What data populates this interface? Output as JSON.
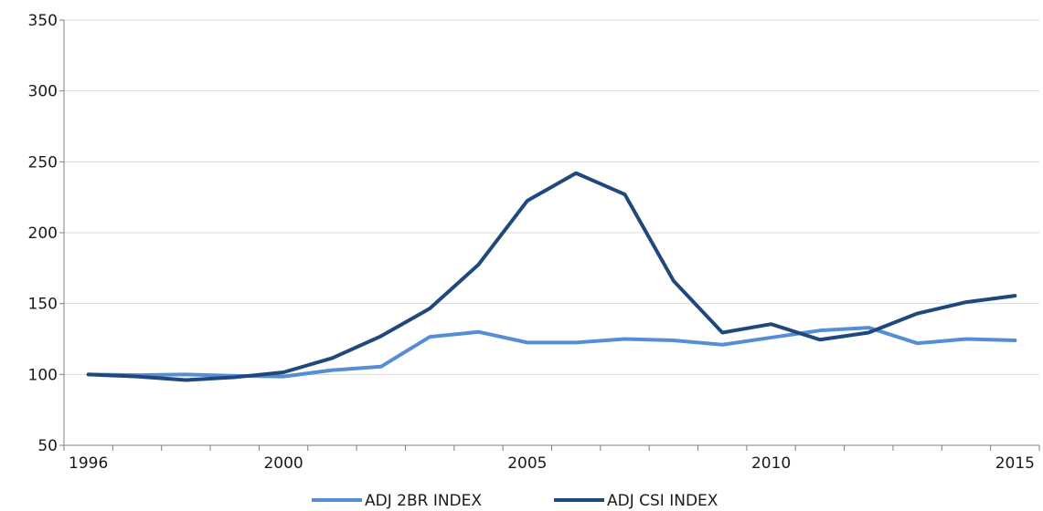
{
  "chart_data": {
    "type": "line",
    "title": "",
    "xlabel": "",
    "ylabel": "",
    "ylim": [
      50,
      350
    ],
    "yticks": [
      50,
      100,
      150,
      200,
      250,
      300,
      350
    ],
    "xlim": [
      1995.5,
      2015.5
    ],
    "xticks_labeled": [
      1996,
      2000,
      2005,
      2010,
      2015
    ],
    "grid": "horizontal",
    "legend_position": "bottom",
    "x": [
      1996,
      1997,
      1998,
      1999,
      2000,
      2001,
      2002,
      2003,
      2004,
      2005,
      2006,
      2007,
      2008,
      2009,
      2010,
      2011,
      2012,
      2013,
      2014,
      2015
    ],
    "series": [
      {
        "name": "ADJ 2BR INDEX",
        "color": "#558ed5",
        "values": [
          100,
          99.5,
          100,
          99,
          98.5,
          103,
          105.5,
          126.5,
          130,
          122.5,
          122.5,
          125,
          124,
          121,
          126,
          131,
          133,
          122,
          125,
          124
        ]
      },
      {
        "name": "ADJ CSI INDEX",
        "color": "#1f497d",
        "values": [
          100,
          98.5,
          96,
          98,
          101.5,
          111.5,
          127,
          146.5,
          177.5,
          222.5,
          242,
          227,
          166,
          129.5,
          135.5,
          124.5,
          129.5,
          143,
          151,
          155.5
        ]
      }
    ]
  }
}
